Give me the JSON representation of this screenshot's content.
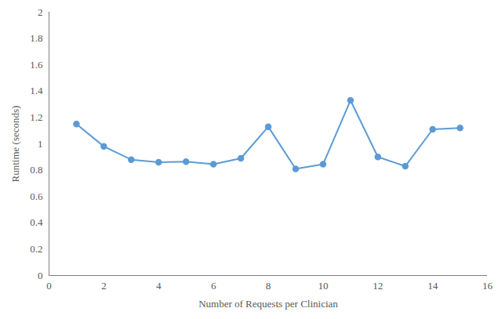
{
  "chart_data": {
    "type": "line",
    "x_label": "Number of Requests per Clinician",
    "y_label": "Runtime (seconds)",
    "x": [
      1,
      2,
      3,
      4,
      5,
      6,
      7,
      8,
      9,
      10,
      11,
      12,
      13,
      14,
      15
    ],
    "values": [
      1.15,
      0.98,
      0.88,
      0.86,
      0.865,
      0.845,
      0.89,
      1.13,
      0.81,
      0.845,
      1.33,
      0.9,
      0.83,
      1.11,
      1.12
    ],
    "color": "#5b9bd5",
    "marker": "circle",
    "xlim": [
      0,
      16
    ],
    "xticks": [
      0,
      2,
      4,
      6,
      8,
      10,
      12,
      14,
      16
    ],
    "ylim": [
      0,
      2
    ],
    "yticks": [
      0,
      0.2,
      0.4,
      0.6,
      0.8,
      1,
      1.2,
      1.4,
      1.6,
      1.8,
      2
    ],
    "grid": false
  }
}
